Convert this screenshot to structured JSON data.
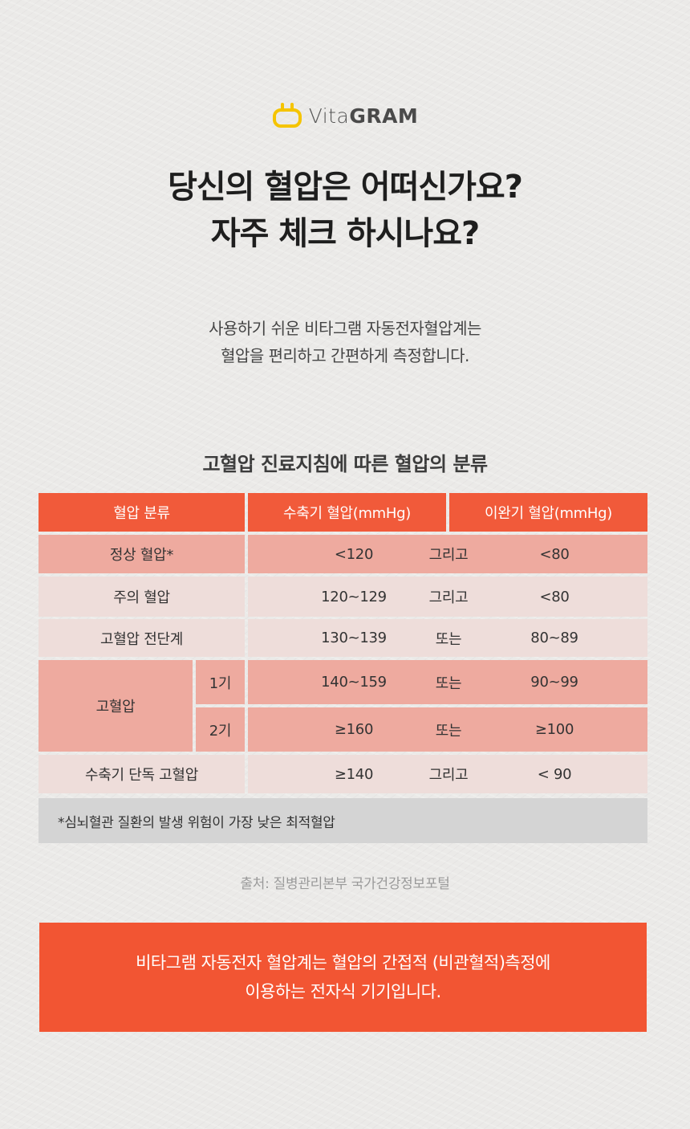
{
  "brand": {
    "name_light": "Vita",
    "name_bold": "GRAM",
    "accent_color": "#f5c400",
    "icon": "power-plug-icon"
  },
  "headline": {
    "line1": "당신의 혈압은 어떠신가요?",
    "line2": "자주 체크 하시나요?"
  },
  "subtext": {
    "line1": "사용하기 쉬운 비타그램 자동전자혈압계는",
    "line2": "혈압을 편리하고 간편하게 측정합니다."
  },
  "table": {
    "title": "고혈압 진료지침에 따른 혈압의 분류",
    "header": {
      "category": "혈압 분류",
      "systolic": "수축기 혈압(mmHg)",
      "diastolic": "이완기 혈압(mmHg)"
    },
    "rows": [
      {
        "category": "정상 혈압*",
        "systolic": "<120",
        "op": "그리고",
        "diastolic": "<80"
      },
      {
        "category": "주의 혈압",
        "systolic": "120~129",
        "op": "그리고",
        "diastolic": "<80"
      },
      {
        "category": "고혈압 전단계",
        "systolic": "130~139",
        "op": "또는",
        "diastolic": "80~89"
      },
      {
        "category": "고혈압",
        "stage": "1기",
        "systolic": "140~159",
        "op": "또는",
        "diastolic": "90~99"
      },
      {
        "category": "고혈압",
        "stage": "2기",
        "systolic": "≥160",
        "op": "또는",
        "diastolic": "≥100"
      },
      {
        "category": "수축기 단독 고혈압",
        "systolic": "≥140",
        "op": "그리고",
        "diastolic": "< 90"
      }
    ],
    "note": "*심뇌혈관 질환의 발생 위험이 가장 낮은 최적혈압",
    "colors": {
      "header": "#f15a3a",
      "dark_row": "#eeaa9f",
      "light_row": "#eeddda",
      "note_row": "#d4d4d4"
    }
  },
  "source": "출처: 질병관리본부 국가건강정보포털",
  "banner": {
    "line1": "비타그램 자동전자 혈압계는  혈압의 간접적 (비관혈적)측정에",
    "line2": "이용하는 전자식 기기입니다.",
    "color": "#f25533"
  }
}
